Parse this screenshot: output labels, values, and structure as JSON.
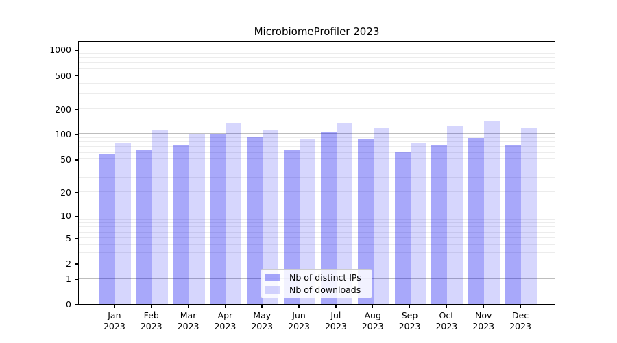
{
  "title": "MicrobiomeProfiler 2023",
  "chart_data": {
    "type": "bar",
    "title": "MicrobiomeProfiler 2023",
    "categories": [
      "Jan 2023",
      "Feb 2023",
      "Mar 2023",
      "Apr 2023",
      "May 2023",
      "Jun 2023",
      "Jul 2023",
      "Aug 2023",
      "Sep 2023",
      "Oct 2023",
      "Nov 2023",
      "Dec 2023"
    ],
    "series": [
      {
        "name": "Nb of distinct IPs",
        "color": "rgba(0,0,240,0.34)",
        "values": [
          58,
          64,
          75,
          99,
          92,
          65,
          105,
          88,
          61,
          74,
          90,
          74
        ]
      },
      {
        "name": "Nb of downloads",
        "color": "rgba(0,0,240,0.16)",
        "values": [
          78,
          110,
          101,
          134,
          111,
          87,
          136,
          120,
          78,
          125,
          142,
          118
        ]
      }
    ],
    "yscale": "log1p",
    "yticks": [
      0,
      1,
      2,
      5,
      10,
      20,
      50,
      100,
      200,
      500,
      1000
    ],
    "ylim": [
      0,
      1285
    ],
    "grid": {
      "major_at": [
        1,
        10,
        100,
        1000
      ],
      "minor_decades": [
        1,
        10,
        100
      ],
      "major_color": "#bdbdbd",
      "minor_color": "#ececec"
    },
    "legend_position": "lower center",
    "xlabel": "",
    "ylabel": ""
  }
}
